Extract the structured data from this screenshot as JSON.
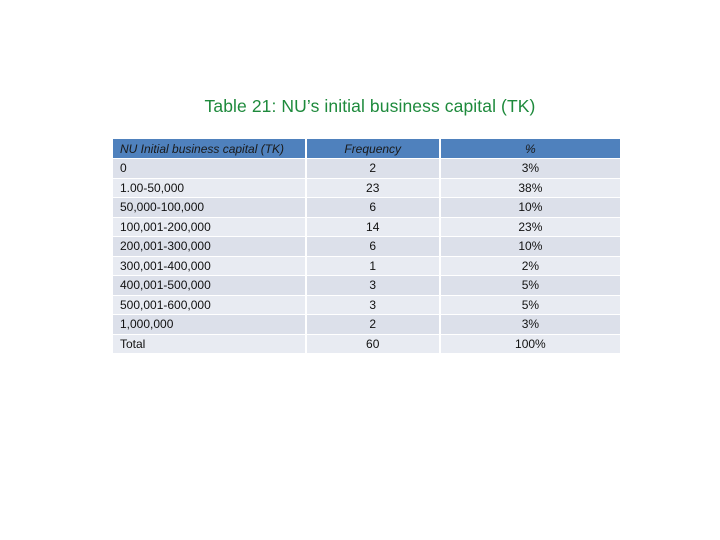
{
  "title": "Table 21: NU’s initial business capital (TK)",
  "table": {
    "headers": [
      "NU Initial business capital (TK)",
      "Frequency",
      "%"
    ],
    "rows": [
      {
        "range": "0",
        "frequency": "2",
        "percent": "3%"
      },
      {
        "range": "1.00-50,000",
        "frequency": "23",
        "percent": "38%"
      },
      {
        "range": "50,000-100,000",
        "frequency": "6",
        "percent": "10%"
      },
      {
        "range": "100,001-200,000",
        "frequency": "14",
        "percent": "23%"
      },
      {
        "range": "200,001-300,000",
        "frequency": "6",
        "percent": "10%"
      },
      {
        "range": "300,001-400,000",
        "frequency": "1",
        "percent": "2%"
      },
      {
        "range": "400,001-500,000",
        "frequency": "3",
        "percent": "5%"
      },
      {
        "range": "500,001-600,000",
        "frequency": "3",
        "percent": "5%"
      },
      {
        "range": "1,000,000",
        "frequency": "2",
        "percent": "3%"
      },
      {
        "range": "Total",
        "frequency": "60",
        "percent": "100%"
      }
    ]
  },
  "colors": {
    "title": "#1e8a3c",
    "header_background": "#4f81bd",
    "row_band_dark": "#dce0ea",
    "row_band_light": "#e8ebf2"
  }
}
